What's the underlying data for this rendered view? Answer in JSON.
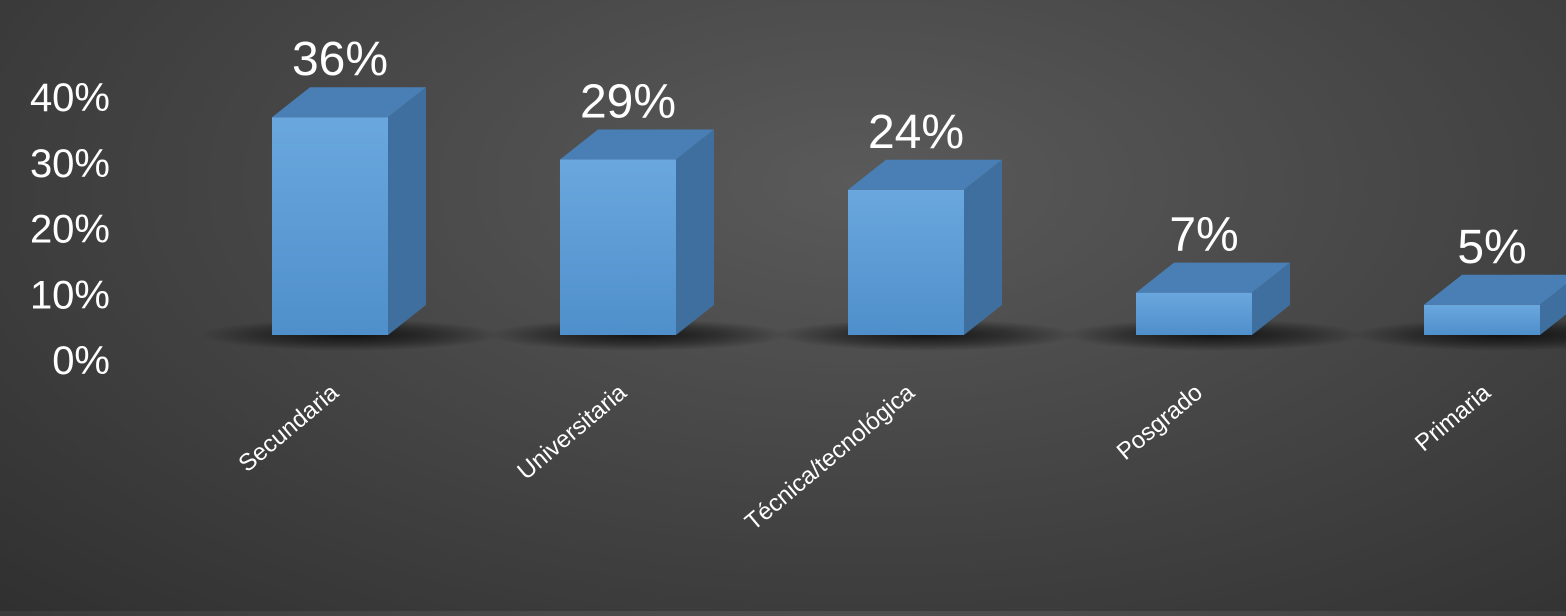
{
  "chart_data": {
    "type": "bar",
    "style": "3d-column",
    "categories": [
      "Secundaria",
      "Universitaria",
      "Técnica/tecnológica",
      "Posgrado",
      "Primaria"
    ],
    "values": [
      36,
      29,
      24,
      7,
      5
    ],
    "data_labels": [
      "36%",
      "29%",
      "24%",
      "7%",
      "5%"
    ],
    "y_ticks": [
      0,
      10,
      20,
      30,
      40
    ],
    "y_tick_labels": [
      "0%",
      "10%",
      "20%",
      "30%",
      "40%"
    ],
    "ylim": [
      0,
      40
    ],
    "grid": false,
    "legend": "none",
    "colors": {
      "bar_front": "#5b9bd5",
      "bar_side": "#3e6f9f",
      "bar_top": "#4a7fb5",
      "text": "#ffffff",
      "background": "#474747"
    }
  }
}
